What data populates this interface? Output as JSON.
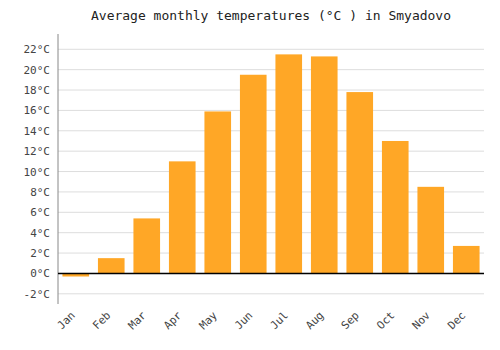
{
  "chart_data": {
    "type": "bar",
    "title": "Average monthly temperatures (°C ) in Smyadovo",
    "categories": [
      "Jan",
      "Feb",
      "Mar",
      "Apr",
      "May",
      "Jun",
      "Jul",
      "Aug",
      "Sep",
      "Oct",
      "Nov",
      "Dec"
    ],
    "values": [
      -0.3,
      1.5,
      5.4,
      11.0,
      15.9,
      19.5,
      21.5,
      21.3,
      17.8,
      13.0,
      8.5,
      2.7
    ],
    "color": "#FFA726",
    "ylim": [
      -3,
      23.5
    ],
    "yticks": [
      {
        "value": -2,
        "label": "-2°C"
      },
      {
        "value": 0,
        "label": "0°C"
      },
      {
        "value": 2,
        "label": "2°C"
      },
      {
        "value": 4,
        "label": "4°C"
      },
      {
        "value": 6,
        "label": "6°C"
      },
      {
        "value": 8,
        "label": "8°C"
      },
      {
        "value": 10,
        "label": "10°C"
      },
      {
        "value": 12,
        "label": "12°C"
      },
      {
        "value": 14,
        "label": "14°C"
      },
      {
        "value": 16,
        "label": "16°C"
      },
      {
        "value": 18,
        "label": "18°C"
      },
      {
        "value": 20,
        "label": "20°C"
      },
      {
        "value": 22,
        "label": "22°C"
      }
    ],
    "grid": true
  }
}
